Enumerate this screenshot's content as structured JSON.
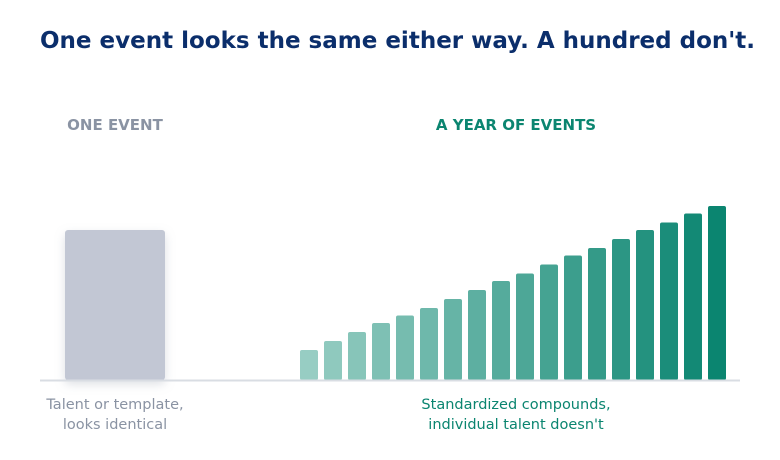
{
  "title": "One event looks the same either way. A hundred don't.",
  "colors": {
    "title": "#0b2e6b",
    "muted": "#8a93a3",
    "single_bar": "#c2c7d4",
    "teal_dark": "#0b8570",
    "teal_light": "#97cdc3",
    "baseline": "#d9dde3"
  },
  "chart_data": [
    {
      "type": "bar",
      "label": "ONE EVENT",
      "values": [
        1
      ],
      "caption": [
        "Talent or template,",
        "looks identical"
      ]
    },
    {
      "type": "bar",
      "label": "A YEAR OF EVENTS",
      "values": [
        0.2,
        0.26,
        0.32,
        0.38,
        0.43,
        0.48,
        0.54,
        0.6,
        0.66,
        0.71,
        0.77,
        0.83,
        0.88,
        0.94,
        1.0,
        1.05,
        1.11,
        1.16
      ],
      "caption": [
        "Standardized compounds,",
        "individual talent doesn't"
      ]
    }
  ]
}
